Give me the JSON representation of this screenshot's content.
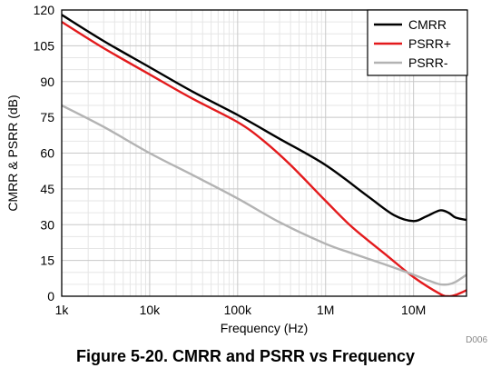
{
  "figure": {
    "caption": "Figure 5-20. CMRR and PSRR vs Frequency",
    "id_label": "D006"
  },
  "chart_data": {
    "type": "line",
    "title": "",
    "xlabel": "Frequency (Hz)",
    "ylabel": "CMRR & PSRR (dB)",
    "xscale": "log",
    "xlim": [
      1000,
      40000000
    ],
    "ylim": [
      0,
      120
    ],
    "x_ticks": [
      1000,
      10000,
      100000,
      1000000,
      10000000
    ],
    "x_tick_labels": [
      "1k",
      "10k",
      "100k",
      "1M",
      "10M"
    ],
    "y_ticks": [
      0,
      15,
      30,
      45,
      60,
      75,
      90,
      105,
      120
    ],
    "y_tick_labels": [
      "0",
      "15",
      "30",
      "45",
      "60",
      "75",
      "90",
      "105",
      "120"
    ],
    "grid": true,
    "legend": "top-right",
    "series": [
      {
        "name": "CMRR",
        "color": "#000000",
        "points": [
          [
            1000,
            118
          ],
          [
            3000,
            107
          ],
          [
            10000,
            96
          ],
          [
            30000,
            86
          ],
          [
            100000,
            76
          ],
          [
            300000,
            66
          ],
          [
            1000000,
            55
          ],
          [
            3000000,
            42
          ],
          [
            6000000,
            34
          ],
          [
            10000000,
            31.5
          ],
          [
            14000000,
            33.5
          ],
          [
            20000000,
            36
          ],
          [
            25000000,
            35
          ],
          [
            30000000,
            33
          ],
          [
            40000000,
            32
          ]
        ]
      },
      {
        "name": "PSRR+",
        "color": "#e31a1c",
        "points": [
          [
            1000,
            115
          ],
          [
            3000,
            104
          ],
          [
            10000,
            93
          ],
          [
            30000,
            83
          ],
          [
            100000,
            73
          ],
          [
            200000,
            65
          ],
          [
            400000,
            55
          ],
          [
            1000000,
            40
          ],
          [
            2000000,
            29
          ],
          [
            5000000,
            17
          ],
          [
            10000000,
            8
          ],
          [
            20000000,
            1
          ],
          [
            25000000,
            0
          ],
          [
            30000000,
            0.5
          ],
          [
            40000000,
            2.5
          ]
        ]
      },
      {
        "name": "PSRR-",
        "color": "#b3b3b3",
        "points": [
          [
            1000,
            80
          ],
          [
            3000,
            71
          ],
          [
            10000,
            60
          ],
          [
            30000,
            51
          ],
          [
            100000,
            41
          ],
          [
            300000,
            31
          ],
          [
            1000000,
            22
          ],
          [
            2000000,
            18
          ],
          [
            5000000,
            13
          ],
          [
            10000000,
            9
          ],
          [
            15000000,
            6.5
          ],
          [
            20000000,
            5
          ],
          [
            25000000,
            5
          ],
          [
            30000000,
            6
          ],
          [
            40000000,
            9
          ]
        ]
      }
    ]
  }
}
